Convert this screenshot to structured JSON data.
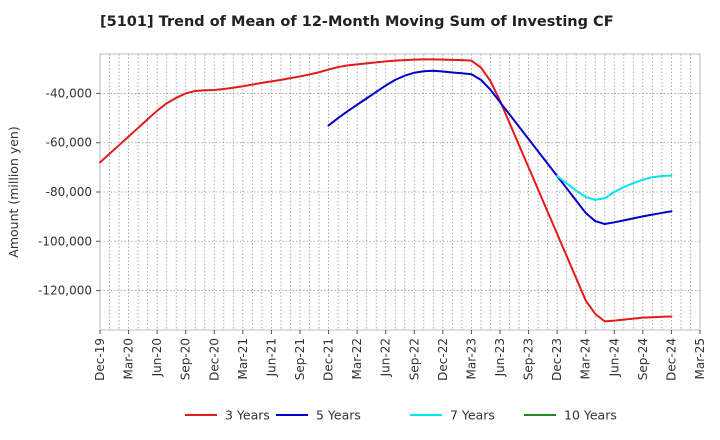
{
  "chart_data": {
    "type": "line",
    "title": "[5101]  Trend of Mean of 12-Month Moving Sum of Investing CF",
    "xlabel": "",
    "ylabel": "Amount (million yen)",
    "ylim": [
      -136000,
      -24000
    ],
    "y_ticks": [
      -40000,
      -60000,
      -80000,
      -100000,
      -120000
    ],
    "y_tick_labels": [
      "-40,000",
      "-60,000",
      "-80,000",
      "-100,000",
      "-120,000"
    ],
    "x_tick_labels": [
      "Dec-19",
      "Mar-20",
      "Jun-20",
      "Sep-20",
      "Dec-20",
      "Mar-21",
      "Jun-21",
      "Sep-21",
      "Dec-21",
      "Mar-22",
      "Jun-22",
      "Sep-22",
      "Dec-22",
      "Mar-23",
      "Jun-23",
      "Sep-23",
      "Dec-23",
      "Mar-24",
      "Jun-24",
      "Sep-24",
      "Dec-24",
      "Mar-25"
    ],
    "grid": true,
    "legend_position": "bottom",
    "series": [
      {
        "name": "3 Years",
        "color": "#e31a1c",
        "x": [
          0,
          1,
          2,
          3,
          4,
          5,
          6,
          7,
          8,
          9,
          10,
          11,
          12,
          13,
          14,
          15,
          16,
          17,
          18,
          19,
          20,
          21,
          22,
          23,
          24,
          25,
          26,
          27,
          28,
          29,
          30,
          31,
          32,
          33,
          34,
          35,
          36,
          37,
          38,
          39,
          40,
          41,
          42,
          43,
          44,
          45,
          46,
          47,
          48,
          49,
          50,
          51,
          52,
          53,
          54,
          55,
          56,
          57,
          58,
          59,
          60
        ],
        "values": [
          -68000,
          -64500,
          -61000,
          -57500,
          -54000,
          -50500,
          -47000,
          -44000,
          -41800,
          -40000,
          -39000,
          -38700,
          -38600,
          -38200,
          -37700,
          -37100,
          -36400,
          -35700,
          -35100,
          -34500,
          -33800,
          -33100,
          -32300,
          -31400,
          -30300,
          -29300,
          -28600,
          -28200,
          -27800,
          -27400,
          -27000,
          -26700,
          -26500,
          -26300,
          -26200,
          -26200,
          -26300,
          -26400,
          -26500,
          -26700,
          -29500,
          -35000,
          -43000,
          -52000,
          -61000,
          -70000,
          -79000,
          -88000,
          -97000,
          -106000,
          -115000,
          -124000,
          -129500,
          -132500,
          -132200,
          -131800,
          -131400,
          -131000,
          -130800,
          -130600,
          -130500
        ]
      },
      {
        "name": "5 Years",
        "color": "#0000cc",
        "x": [
          24,
          25,
          26,
          27,
          28,
          29,
          30,
          31,
          32,
          33,
          34,
          35,
          36,
          37,
          38,
          39,
          40,
          41,
          42,
          43,
          44,
          45,
          46,
          47,
          48,
          49,
          50,
          51,
          52,
          53,
          54,
          55,
          56,
          57,
          58,
          59,
          60
        ],
        "values": [
          -53000,
          -50000,
          -47200,
          -44600,
          -42000,
          -39400,
          -36800,
          -34500,
          -32800,
          -31600,
          -31000,
          -30800,
          -31100,
          -31500,
          -31800,
          -32200,
          -34500,
          -38500,
          -43500,
          -48500,
          -53500,
          -58500,
          -63500,
          -68500,
          -73500,
          -78500,
          -83500,
          -88500,
          -91800,
          -93000,
          -92300,
          -91500,
          -90700,
          -89900,
          -89200,
          -88500,
          -87800
        ]
      },
      {
        "name": "7 Years",
        "color": "#00e5ee",
        "x": [
          48,
          49,
          50,
          51,
          52,
          53,
          54,
          55,
          56,
          57,
          58,
          59,
          60
        ],
        "values": [
          -73500,
          -76500,
          -79500,
          -82000,
          -83200,
          -82500,
          -80000,
          -78000,
          -76400,
          -75000,
          -74000,
          -73500,
          -73300
        ]
      },
      {
        "name": "10 Years",
        "color": "#228b22",
        "x": [],
        "values": []
      }
    ]
  }
}
